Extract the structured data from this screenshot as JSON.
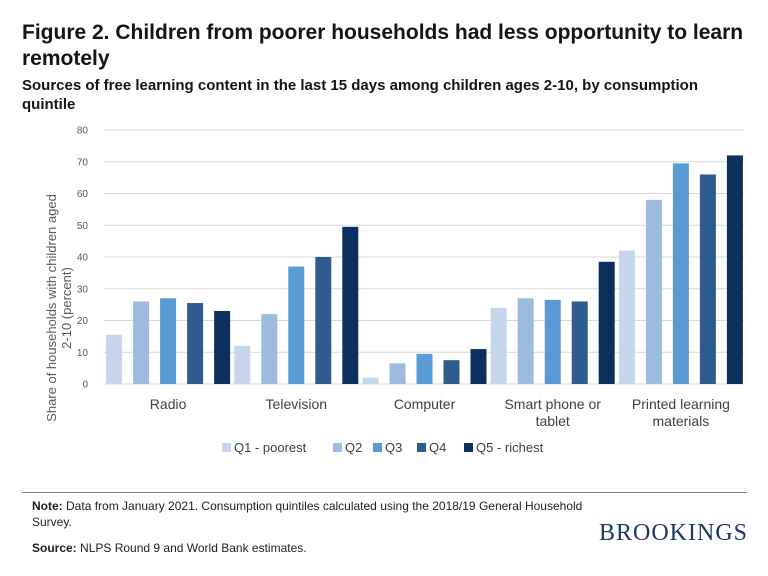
{
  "header": {
    "title": "Figure 2. Children from poorer households had less opportunity to learn remotely",
    "subtitle": "Sources of free learning content in the last 15 days among children ages 2-10, by consumption quintile"
  },
  "chart_data": {
    "type": "bar",
    "title": "Sources of free learning content in the last 15 days among children ages 2-10, by consumption quintile",
    "xlabel": "",
    "ylabel": "Share of households with children aged 2-10 (percent)",
    "ylim": [
      0,
      80
    ],
    "yticks": [
      0,
      10,
      20,
      30,
      40,
      50,
      60,
      70,
      80
    ],
    "grid": true,
    "legend_position": "bottom",
    "categories": [
      [
        "Radio"
      ],
      [
        "Television"
      ],
      [
        "Computer"
      ],
      [
        "Smart phone or",
        "tablet"
      ],
      [
        "Printed learning",
        "materials"
      ]
    ],
    "series": [
      {
        "name": "Q1 - poorest",
        "color": "#c5d5ea",
        "values": [
          15.5,
          12,
          2,
          24,
          42
        ]
      },
      {
        "name": "Q2",
        "color": "#9dbbe0",
        "values": [
          26,
          22,
          6.5,
          27,
          58
        ]
      },
      {
        "name": "Q3",
        "color": "#5b9bd5",
        "values": [
          27,
          37,
          9.5,
          26.5,
          69.5
        ]
      },
      {
        "name": "Q4",
        "color": "#2e5c8e",
        "values": [
          25.5,
          40,
          7.5,
          26,
          66
        ]
      },
      {
        "name": "Q5 - richest",
        "color": "#0d2f5e",
        "values": [
          23,
          49.5,
          11,
          38.5,
          72
        ]
      }
    ]
  },
  "footer": {
    "note_label": "Note:",
    "note_text": "Data from January 2021. Consumption quintiles calculated using the 2018/19 General Household Survey.",
    "source_label": "Source:",
    "source_text": "NLPS Round 9 and World Bank estimates.",
    "logo_text": "BROOKINGS"
  },
  "colors": {
    "gridline": "#d9d9d9",
    "logo": "#1f3864"
  }
}
